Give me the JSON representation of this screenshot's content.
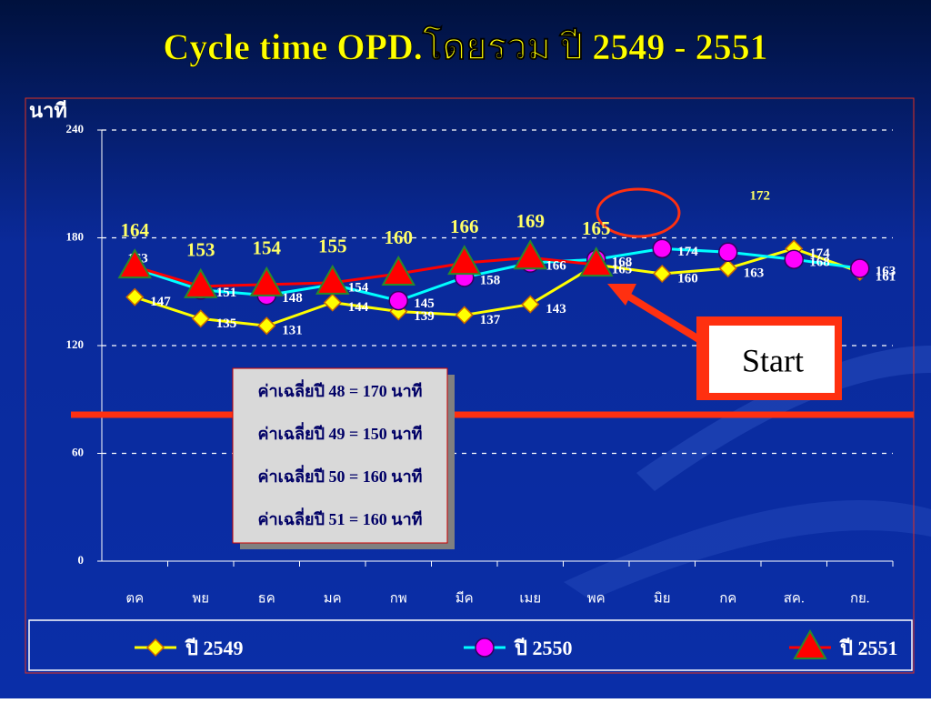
{
  "chart_data": {
    "type": "line",
    "title": "Cycle time OPD.โดยรวม ปี 2549 - 2551",
    "y_label": "นาที",
    "categories": [
      "ตค",
      "พย",
      "ธค",
      "มค",
      "กพ",
      "มีค",
      "เมย",
      "พค",
      "มิย",
      "กค",
      "สค.",
      "กย."
    ],
    "series": [
      {
        "name": "ปี 2549",
        "color": "#ffff00",
        "marker_color": "#ffff00",
        "marker": "diamond",
        "values": [
          147,
          135,
          131,
          144,
          139,
          137,
          143,
          165,
          160,
          163,
          174,
          161
        ]
      },
      {
        "name": "ปี 2550",
        "color": "#00ffff",
        "marker_color": "#ff00ff",
        "marker": "circle",
        "values": [
          163,
          151,
          148,
          154,
          145,
          158,
          166,
          168,
          174,
          172,
          168,
          163
        ]
      },
      {
        "name": "ปี 2551",
        "color": "#ff0000",
        "marker_color": "#ff0000",
        "marker": "triangle",
        "values": [
          164,
          153,
          154,
          155,
          160,
          166,
          169,
          165,
          null,
          null,
          null,
          null
        ]
      }
    ],
    "ylim": [
      0,
      240
    ],
    "yticks": [
      0,
      60,
      120,
      180,
      240
    ],
    "grid": true,
    "legend": "bottom",
    "annotations": [
      "ค่าเฉลี่ยปี 48 = 170 นาที",
      "ค่าเฉลี่ยปี 49 = 150 นาที",
      "ค่าเฉลี่ยปี 50 = 160 นาที",
      "ค่าเฉลี่ยปี 51 = 160 นาที"
    ],
    "callout": "Start"
  }
}
